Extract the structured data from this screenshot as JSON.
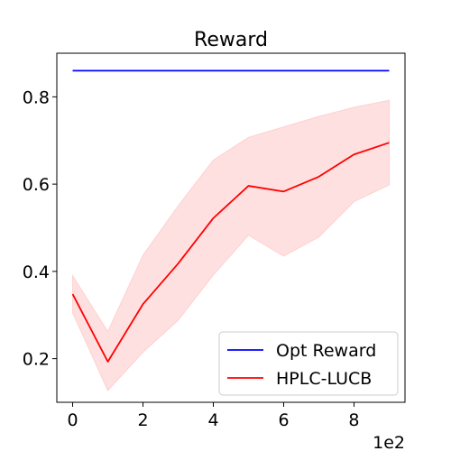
{
  "chart_data": {
    "type": "line",
    "title": "Reward",
    "xlabel": "",
    "ylabel": "",
    "x": [
      0,
      1,
      2,
      3,
      4,
      5,
      6,
      7,
      8,
      9
    ],
    "xlim": [
      -0.45,
      9.45
    ],
    "ylim": [
      0.1,
      0.9
    ],
    "x_ticks": [
      0,
      2,
      4,
      6,
      8
    ],
    "x_tick_labels": [
      "0",
      "2",
      "4",
      "6",
      "8"
    ],
    "y_ticks": [
      0.2,
      0.4,
      0.6,
      0.8
    ],
    "y_tick_labels": [
      "0.2",
      "0.4",
      "0.6",
      "0.8"
    ],
    "x_offset_label": "1e2",
    "grid": false,
    "legend_position": "lower-right",
    "series": [
      {
        "name": "Opt Reward",
        "color": "#0000ff",
        "values": [
          0.86,
          0.86,
          0.86,
          0.86,
          0.86,
          0.86,
          0.86,
          0.86,
          0.86,
          0.86
        ]
      },
      {
        "name": "HPLC-LUCB",
        "color": "#ff0000",
        "band_color": "#ffcccc",
        "values": [
          0.348,
          0.193,
          0.325,
          0.418,
          0.522,
          0.596,
          0.583,
          0.617,
          0.668,
          0.695
        ],
        "lower": [
          0.305,
          0.127,
          0.215,
          0.288,
          0.392,
          0.483,
          0.435,
          0.479,
          0.56,
          0.598
        ],
        "upper": [
          0.39,
          0.262,
          0.437,
          0.55,
          0.655,
          0.707,
          0.731,
          0.755,
          0.776,
          0.792
        ]
      }
    ]
  }
}
